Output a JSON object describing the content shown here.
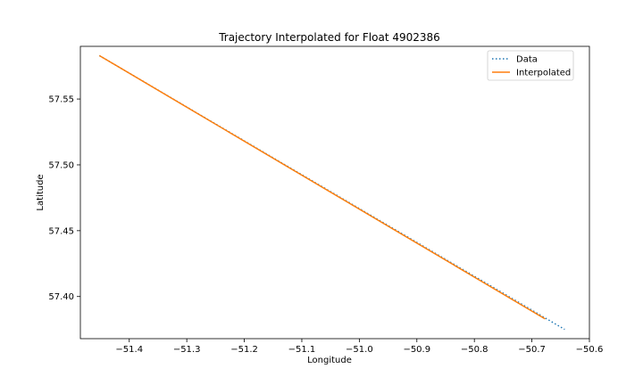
{
  "chart_data": {
    "type": "line",
    "title": "Trajectory Interpolated for Float 4902386",
    "xlabel": "Longitude",
    "ylabel": "Latitude",
    "xlim": [
      -51.485,
      -50.6
    ],
    "ylim": [
      57.368,
      57.59
    ],
    "xticks": [
      -51.4,
      -51.3,
      -51.2,
      -51.1,
      -51.0,
      -50.9,
      -50.8,
      -50.7,
      -50.6
    ],
    "xtick_labels": [
      "−51.4",
      "−51.3",
      "−51.2",
      "−51.1",
      "−51.0",
      "−50.9",
      "−50.8",
      "−50.7",
      "−50.6"
    ],
    "yticks": [
      57.4,
      57.45,
      57.5,
      57.55
    ],
    "ytick_labels": [
      "57.40",
      "57.45",
      "57.50",
      "57.55"
    ],
    "grid": false,
    "legend_position": "top-right",
    "series": [
      {
        "name": "Data",
        "style": "dotted",
        "color": "#1f77b4",
        "x": [
          -51.452,
          -50.643
        ],
        "y": [
          57.583,
          57.375
        ]
      },
      {
        "name": "Interpolated",
        "style": "solid",
        "color": "#ff7f0e",
        "x": [
          -51.452,
          -50.677
        ],
        "y": [
          57.583,
          57.383
        ]
      }
    ]
  }
}
